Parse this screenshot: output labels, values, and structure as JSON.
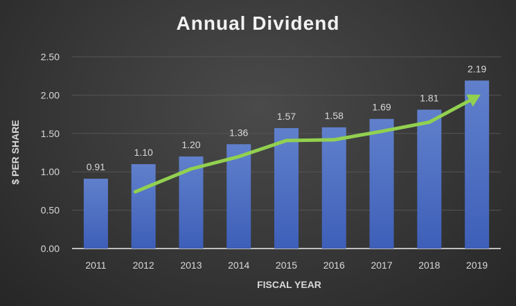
{
  "chart_data": {
    "type": "bar",
    "title": "Annual Dividend",
    "xlabel": "FISCAL YEAR",
    "ylabel": "$ PER SHARE",
    "categories": [
      "2011",
      "2012",
      "2013",
      "2014",
      "2015",
      "2016",
      "2017",
      "2018",
      "2019"
    ],
    "values": [
      0.91,
      1.1,
      1.2,
      1.36,
      1.57,
      1.58,
      1.69,
      1.81,
      2.19
    ],
    "data_labels": [
      "0.91",
      "1.10",
      "1.20",
      "1.36",
      "1.57",
      "1.58",
      "1.69",
      "1.81",
      "2.19"
    ],
    "yticks": [
      "0.00",
      "0.50",
      "1.00",
      "1.50",
      "2.00",
      "2.50"
    ],
    "ylim": [
      0,
      2.5
    ],
    "grid": true,
    "annotation": "trend arrow from 2012 to 2019",
    "colors": {
      "bar": "#4f72c4",
      "arrow": "#92d050",
      "text": "#d9d9d9"
    }
  }
}
